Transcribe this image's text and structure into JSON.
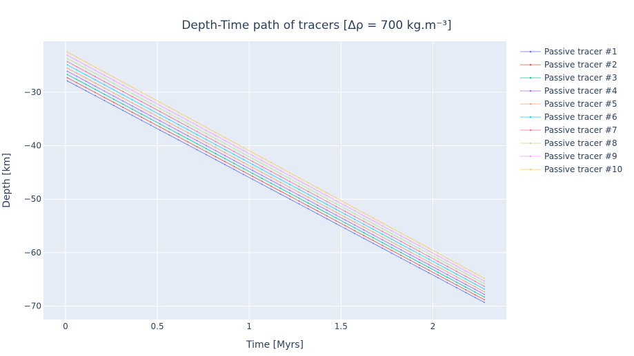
{
  "chart_data": {
    "type": "line",
    "title": "Depth-Time path of tracers [Δρ = 700 kg.m⁻³]",
    "xlabel": "Time [Myrs]",
    "ylabel": "Depth [km]",
    "xlim": [
      -0.12,
      2.4
    ],
    "ylim": [
      -72.5,
      -20.5
    ],
    "xticks": [
      0,
      0.5,
      1,
      1.5,
      2
    ],
    "xtick_labels": [
      "0",
      "0.5",
      "1",
      "1.5",
      "2"
    ],
    "yticks": [
      -30,
      -40,
      -50,
      -60,
      -70
    ],
    "ytick_labels": [
      "−30",
      "−40",
      "−50",
      "−60",
      "−70"
    ],
    "grid": true,
    "legend_position": "right",
    "background": "#e5ecf6",
    "series": [
      {
        "name": "Passive tracer #1",
        "color": "#636efa",
        "x": [
          0.01,
          2.28
        ],
        "y": [
          -27.9,
          -69.3
        ]
      },
      {
        "name": "Passive tracer #2",
        "color": "#ef553b",
        "x": [
          0.01,
          2.28
        ],
        "y": [
          -27.3,
          -68.8
        ]
      },
      {
        "name": "Passive tracer #3",
        "color": "#00cc96",
        "x": [
          0.01,
          2.28
        ],
        "y": [
          -26.7,
          -68.3
        ]
      },
      {
        "name": "Passive tracer #4",
        "color": "#ab63fa",
        "x": [
          0.01,
          2.28
        ],
        "y": [
          -26.1,
          -67.8
        ]
      },
      {
        "name": "Passive tracer #5",
        "color": "#ffa15a",
        "x": [
          0.01,
          2.28
        ],
        "y": [
          -25.5,
          -67.3
        ]
      },
      {
        "name": "Passive tracer #6",
        "color": "#19d3f3",
        "x": [
          0.01,
          2.28
        ],
        "y": [
          -24.9,
          -66.8
        ]
      },
      {
        "name": "Passive tracer #7",
        "color": "#ff6692",
        "x": [
          0.01,
          2.28
        ],
        "y": [
          -24.3,
          -66.3
        ]
      },
      {
        "name": "Passive tracer #8",
        "color": "#b6e880",
        "x": [
          0.01,
          2.28
        ],
        "y": [
          -23.7,
          -65.8
        ]
      },
      {
        "name": "Passive tracer #9",
        "color": "#ff97ff",
        "x": [
          0.01,
          2.28
        ],
        "y": [
          -23.1,
          -65.3
        ]
      },
      {
        "name": "Passive tracer #10",
        "color": "#fecb52",
        "x": [
          0.01,
          2.28
        ],
        "y": [
          -22.5,
          -64.8
        ]
      }
    ]
  }
}
